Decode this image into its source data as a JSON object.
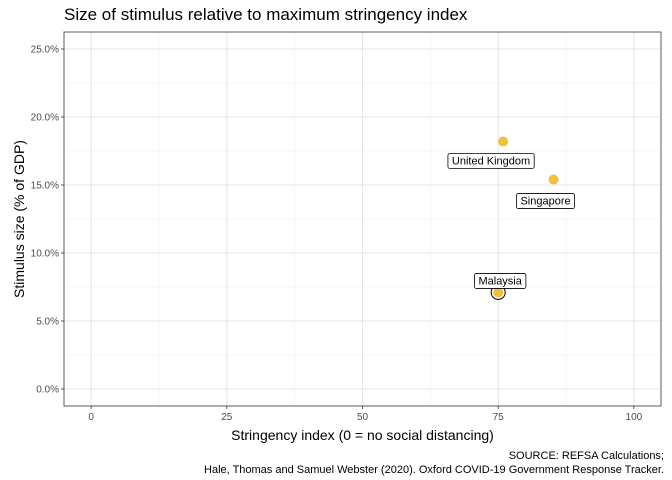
{
  "chart_data": {
    "type": "scatter",
    "title": "Size of stimulus relative to maximum stringency index",
    "xlabel": "Stringency index (0 = no social distancing)",
    "ylabel": "Stimulus size (% of GDP)",
    "xlim": [
      -5,
      105
    ],
    "ylim": [
      -1.25,
      26.25
    ],
    "x_ticks": [
      0,
      25,
      50,
      75,
      100
    ],
    "x_tick_labels": [
      "0",
      "25",
      "50",
      "75",
      "100"
    ],
    "y_ticks": [
      0,
      5,
      10,
      15,
      20,
      25
    ],
    "y_tick_labels": [
      "0.0%",
      "5.0%",
      "10.0%",
      "15.0%",
      "20.0%",
      "25.0%"
    ],
    "grid": true,
    "point_color": "#F0C13D",
    "points": [
      {
        "label": "United Kingdom",
        "x": 75.9,
        "y": 18.2,
        "highlight": false
      },
      {
        "label": "Singapore",
        "x": 85.2,
        "y": 15.4,
        "highlight": false
      },
      {
        "label": "Malaysia",
        "x": 75.0,
        "y": 7.1,
        "highlight": true
      }
    ]
  },
  "caption": {
    "line1": "SOURCE: REFSA Calculations;",
    "line2": "Hale, Thomas and Samuel Webster (2020). Oxford COVID-19 Government Response Tracker."
  }
}
